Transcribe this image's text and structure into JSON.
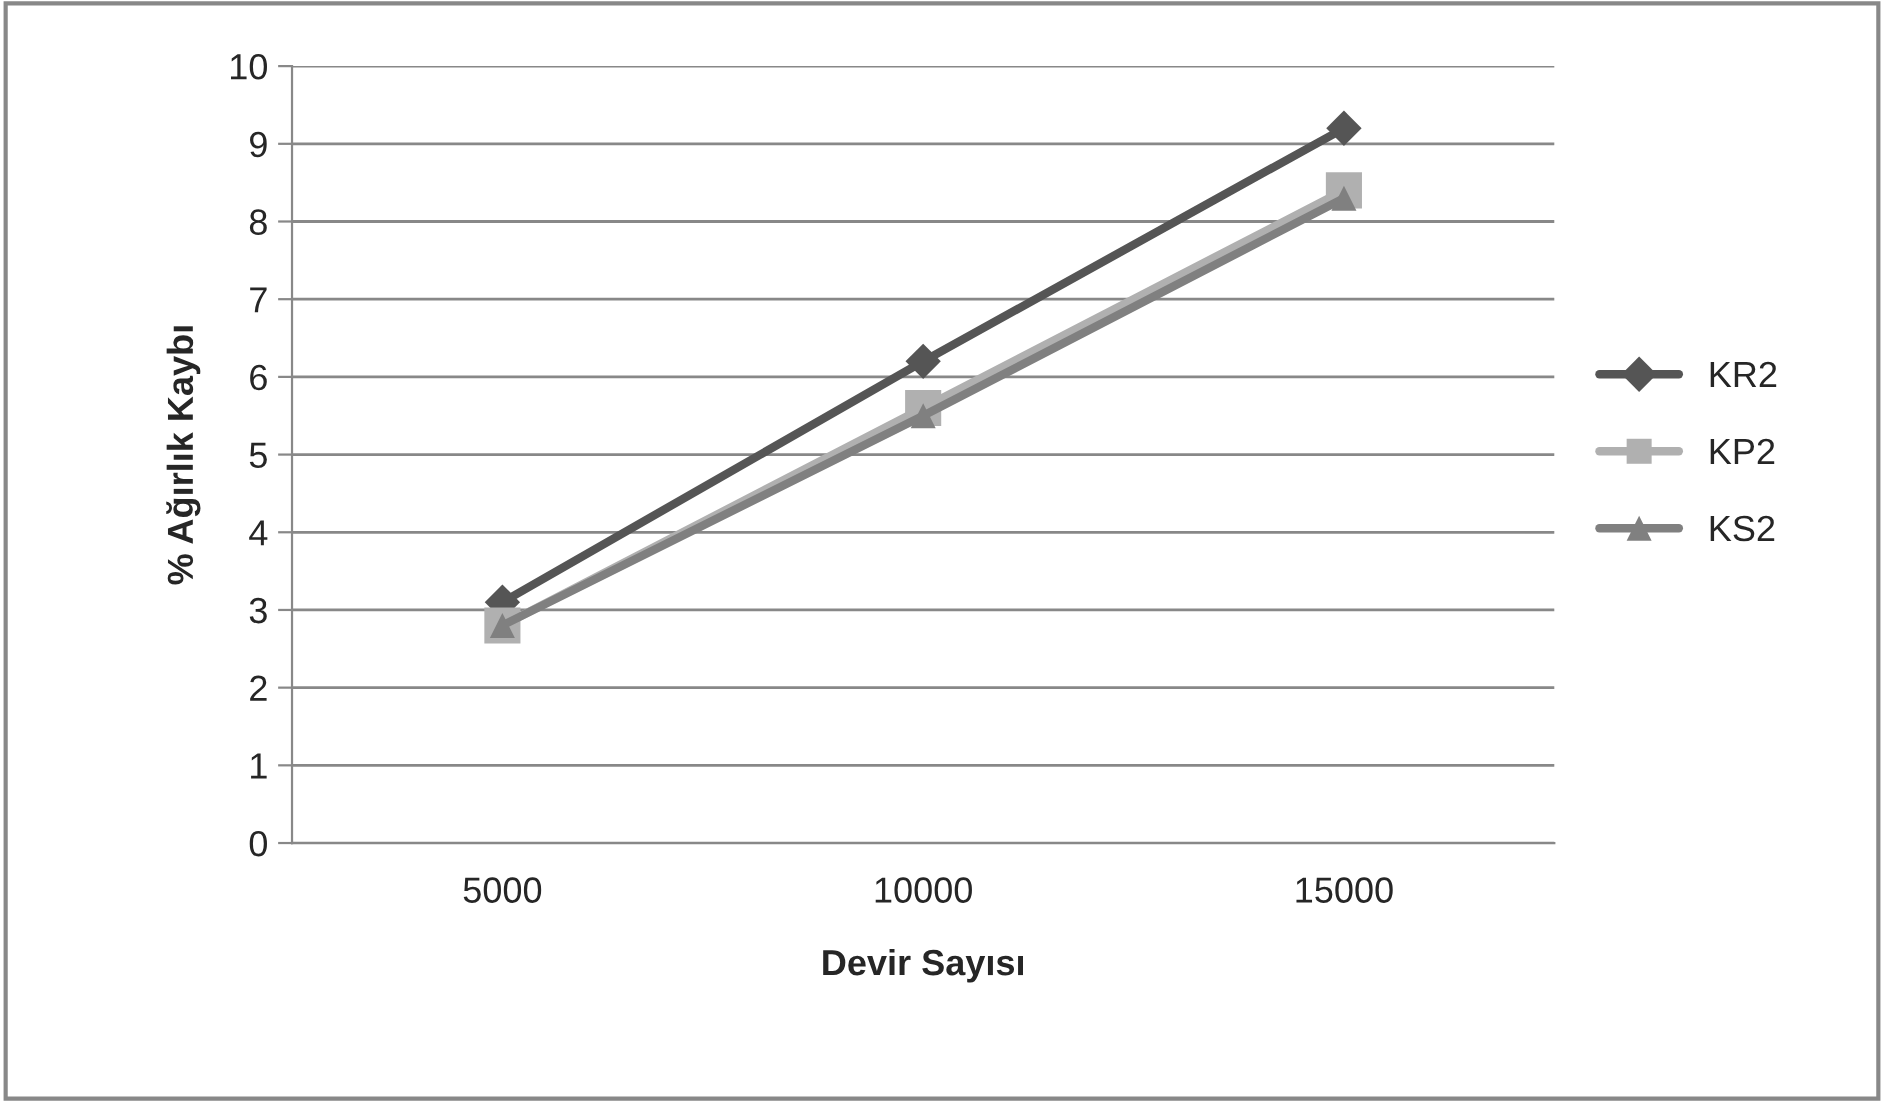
{
  "chart_data": {
    "type": "line",
    "xlabel": "Devir Sayısı",
    "ylabel": "% Ağırlık Kaybı",
    "categories": [
      "5000",
      "10000",
      "15000"
    ],
    "series": [
      {
        "name": "KR2",
        "color": "#555555",
        "marker": "diamond",
        "values": [
          3.1,
          6.2,
          9.2
        ]
      },
      {
        "name": "KP2",
        "color": "#b0b0b0",
        "marker": "square",
        "values": [
          2.8,
          5.6,
          8.4
        ]
      },
      {
        "name": "KS2",
        "color": "#808080",
        "marker": "triangle",
        "values": [
          2.8,
          5.5,
          8.3
        ]
      }
    ],
    "ylim": [
      0,
      10
    ],
    "yticks": [
      0,
      1,
      2,
      3,
      4,
      5,
      6,
      7,
      8,
      9,
      10
    ],
    "grid": "y",
    "legend": "right"
  }
}
